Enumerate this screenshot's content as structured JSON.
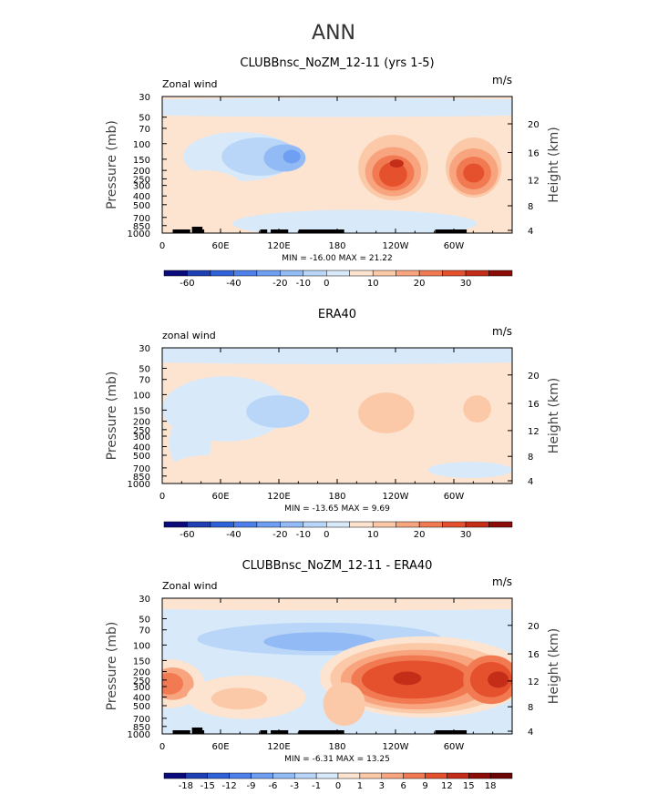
{
  "main_title": "ANN",
  "chart_data": [
    {
      "type": "contour",
      "title": "CLUBBnsc_NoZM_12-11 (yrs 1-5)",
      "left_label": "Zonal wind",
      "right_label": "m/s",
      "ylabel": "Pressure (mb)",
      "y2label": "Height (km)",
      "pressure_ticks": [
        "30",
        "50",
        "70",
        "100",
        "150",
        "200",
        "250",
        "300",
        "400",
        "500",
        "700",
        "850",
        "1000"
      ],
      "height_ticks": [
        "20",
        "16",
        "12",
        "8",
        "4"
      ],
      "lon_ticks": [
        "0",
        "60E",
        "120E",
        "180",
        "120W",
        "60W"
      ],
      "stats": "MIN = -16.00   MAX =  21.22",
      "colorbar_labels": [
        "-60",
        "-40",
        "-20",
        "-10",
        "0",
        "10",
        "20",
        "30"
      ],
      "min": -16.0,
      "max": 21.22
    },
    {
      "type": "contour",
      "title": "ERA40",
      "left_label": "zonal wind",
      "right_label": "m/s",
      "ylabel": "Pressure (mb)",
      "y2label": "Height (km)",
      "pressure_ticks": [
        "30",
        "50",
        "70",
        "100",
        "150",
        "200",
        "250",
        "300",
        "400",
        "500",
        "700",
        "850",
        "1000"
      ],
      "height_ticks": [
        "20",
        "16",
        "12",
        "8",
        "4"
      ],
      "lon_ticks": [
        "0",
        "60E",
        "120E",
        "180",
        "120W",
        "60W"
      ],
      "stats": "MIN = -13.65   MAX =   9.69",
      "colorbar_labels": [
        "-60",
        "-40",
        "-20",
        "-10",
        "0",
        "10",
        "20",
        "30"
      ],
      "min": -13.65,
      "max": 9.69
    },
    {
      "type": "contour",
      "title": "CLUBBnsc_NoZM_12-11 - ERA40",
      "left_label": "Zonal wind",
      "right_label": "m/s",
      "ylabel": "Pressure (mb)",
      "y2label": "Height (km)",
      "pressure_ticks": [
        "30",
        "50",
        "70",
        "100",
        "150",
        "200",
        "250",
        "300",
        "400",
        "500",
        "700",
        "850",
        "1000"
      ],
      "height_ticks": [
        "20",
        "16",
        "12",
        "8",
        "4"
      ],
      "lon_ticks": [
        "0",
        "60E",
        "120E",
        "180",
        "120W",
        "60W"
      ],
      "stats": "MIN =  -6.31   MAX =  13.25",
      "colorbar_labels": [
        "-18",
        "-15",
        "-12",
        "-9",
        "-6",
        "-3",
        "-1",
        "0",
        "1",
        "3",
        "6",
        "9",
        "12",
        "15",
        "18"
      ],
      "min": -6.31,
      "max": 13.25
    }
  ],
  "colors": {
    "neg": [
      "#0a0a7a",
      "#1f3fb5",
      "#2f62d8",
      "#4d80ea",
      "#6f9ff2",
      "#92bbf6",
      "#b9d6f8",
      "#d8e9fa"
    ],
    "pos": [
      "#fde4d0",
      "#fbc9a8",
      "#f8a47e",
      "#f27a52",
      "#e5512d",
      "#c42d17",
      "#8c0c08"
    ]
  }
}
